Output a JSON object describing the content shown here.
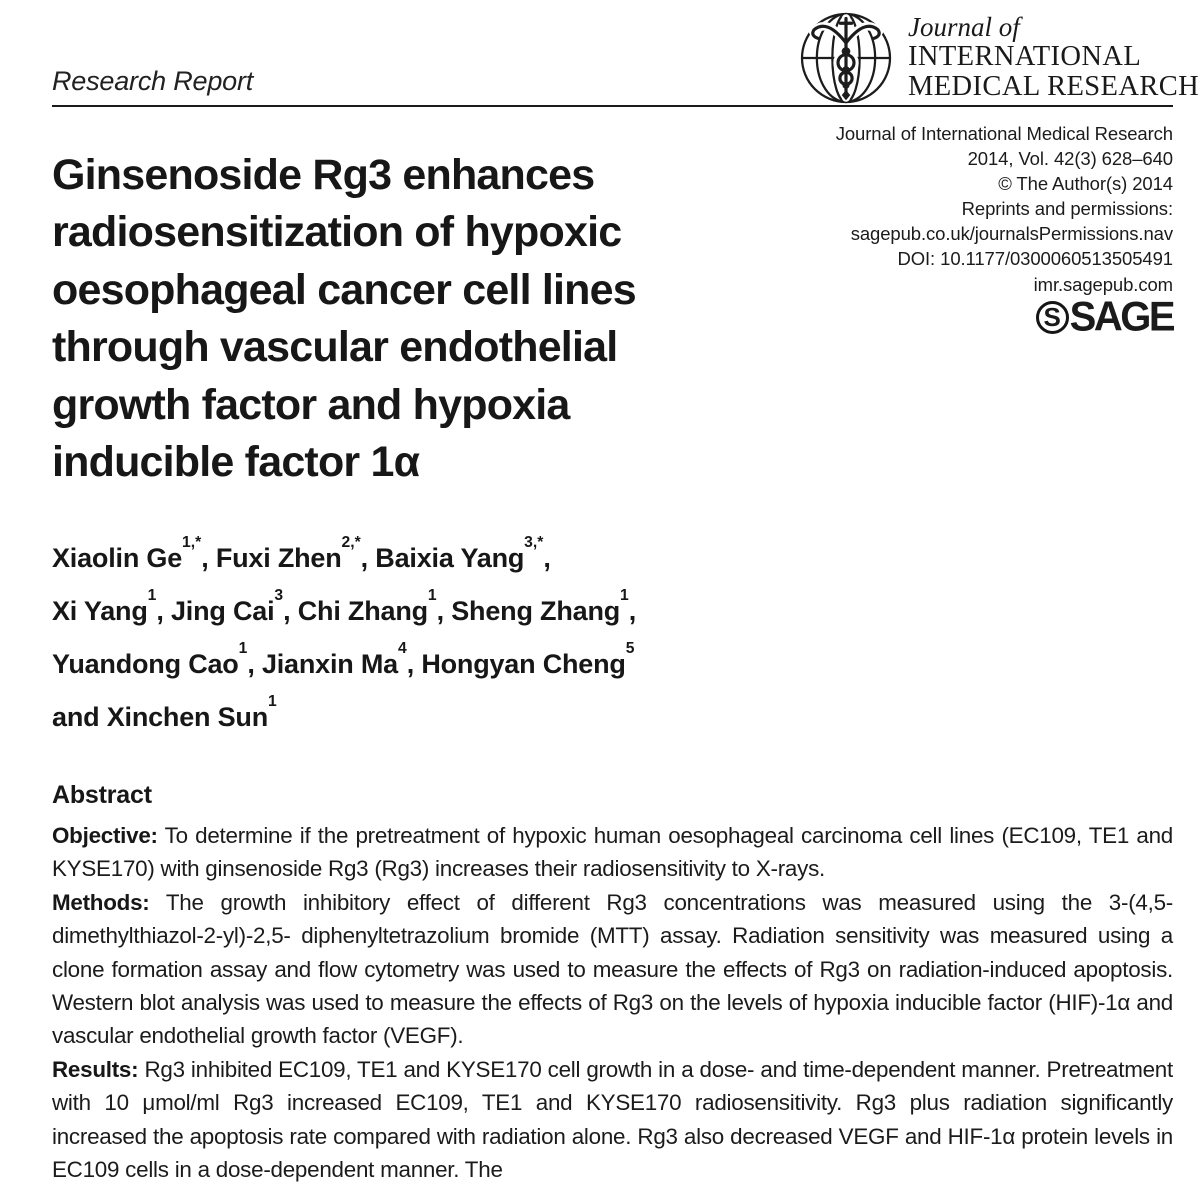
{
  "page": {
    "section_label": "Research Report"
  },
  "masthead": {
    "logo_icon": "globe-caduceus",
    "journal_prefix": "Journal of",
    "journal_name_line1": "INTERNATIONAL",
    "journal_name_line2": "MEDICAL RESEARCH"
  },
  "citation": {
    "lines": [
      "Journal of International Medical Research",
      "2014, Vol. 42(3) 628–640",
      "© The Author(s) 2014",
      "Reprints and permissions:",
      "sagepub.co.uk/journalsPermissions.nav",
      "DOI: 10.1177/0300060513505491",
      "imr.sagepub.com"
    ],
    "publisher_initial": "S",
    "publisher": "SAGE"
  },
  "article": {
    "title_lines": [
      "Ginsenoside Rg3 enhances",
      "radiosensitization of hypoxic",
      "oesophageal cancer cell lines",
      "through vascular endothelial",
      "growth factor and hypoxia",
      "inducible factor 1α"
    ],
    "author_lines": [
      {
        "prefix": "",
        "parts": [
          {
            "name": "Xiaolin Ge",
            "sup": "1,*"
          },
          {
            "name": "Fuxi Zhen",
            "sup": "2,*"
          },
          {
            "name": "Baixia Yang",
            "sup": "3,*"
          }
        ],
        "trailing": ","
      },
      {
        "prefix": "",
        "parts": [
          {
            "name": "Xi Yang",
            "sup": "1"
          },
          {
            "name": "Jing Cai",
            "sup": "3"
          },
          {
            "name": "Chi Zhang",
            "sup": "1"
          },
          {
            "name": "Sheng Zhang",
            "sup": "1"
          }
        ],
        "trailing": ","
      },
      {
        "prefix": "",
        "parts": [
          {
            "name": "Yuandong Cao",
            "sup": "1"
          },
          {
            "name": "Jianxin Ma",
            "sup": "4"
          },
          {
            "name": "Hongyan Cheng",
            "sup": "5"
          }
        ],
        "trailing": ""
      },
      {
        "prefix": "and ",
        "parts": [
          {
            "name": "Xinchen Sun",
            "sup": "1"
          }
        ],
        "trailing": ""
      }
    ]
  },
  "abstract": {
    "heading": "Abstract",
    "sections": [
      {
        "label": "Objective:",
        "text": "To determine if the pretreatment of hypoxic human oesophageal carcinoma cell lines (EC109, TE1 and KYSE170) with ginsenoside Rg3 (Rg3) increases their radiosensitivity to X-rays."
      },
      {
        "label": "Methods:",
        "text": "The growth inhibitory effect of different Rg3 concentrations was measured using the 3-(4,5-dimethylthiazol-2-yl)-2,5- diphenyltetrazolium bromide (MTT) assay. Radiation sensitivity was measured using a clone formation assay and flow cytometry was used to measure the effects of Rg3 on radiation-induced apoptosis. Western blot analysis was used to measure the effects of Rg3 on the levels of hypoxia inducible factor (HIF)-1α and vascular endothelial growth factor (VEGF)."
      },
      {
        "label": "Results:",
        "text": "Rg3 inhibited EC109, TE1 and KYSE170 cell growth in a dose- and time-dependent manner. Pretreatment with 10 μmol/ml Rg3 increased EC109, TE1 and KYSE170 radiosensitivity. Rg3 plus radiation significantly increased the apoptosis rate compared with radiation alone. Rg3 also decreased VEGF and HIF-1α protein levels in EC109 cells in a dose-dependent manner. The"
      }
    ]
  },
  "colors": {
    "text": "#1b1b1b",
    "background": "#ffffff"
  }
}
